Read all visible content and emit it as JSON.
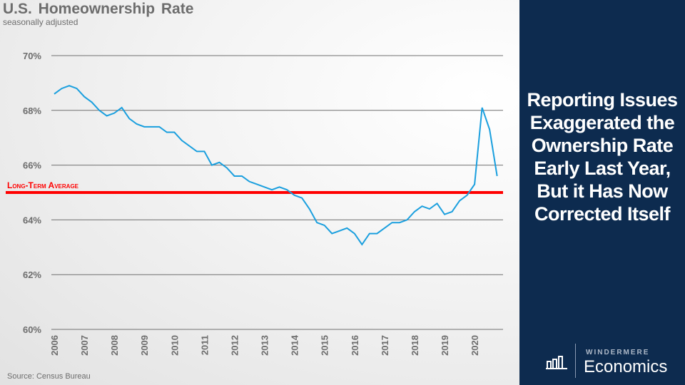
{
  "title": "U.S. Homeownership  Rate",
  "subtitle": "seasonally adjusted",
  "source": "Source: Census Bureau",
  "headline": "Reporting Issues Exaggerated the Ownership Rate Early Last Year, But it Has Now Corrected Itself",
  "logo": {
    "brand": "WINDERMERE",
    "product": "Economics"
  },
  "colors": {
    "line": "#1a9fde",
    "average": "#ff0000",
    "panel": "#0d2b4f",
    "grid": "#707070"
  },
  "chart_data": {
    "type": "line",
    "title": "U.S. Homeownership Rate",
    "ylabel": "",
    "xlabel": "",
    "ylim": [
      60,
      70
    ],
    "yticks": [
      60,
      62,
      64,
      66,
      68,
      70
    ],
    "ytick_labels": [
      "60%",
      "62%",
      "64%",
      "66%",
      "68%",
      "70%"
    ],
    "xtick_labels": [
      "2006",
      "2007",
      "2008",
      "2009",
      "2010",
      "2011",
      "2012",
      "2013",
      "2014",
      "2015",
      "2016",
      "2017",
      "2018",
      "2019",
      "2020"
    ],
    "x_start": 2006,
    "frequency": "quarterly",
    "series": [
      {
        "name": "Homeownership Rate",
        "values": [
          68.6,
          68.8,
          68.9,
          68.8,
          68.5,
          68.3,
          68.0,
          67.8,
          67.9,
          68.1,
          67.7,
          67.5,
          67.4,
          67.4,
          67.4,
          67.2,
          67.2,
          66.9,
          66.7,
          66.5,
          66.5,
          66.0,
          66.1,
          65.9,
          65.6,
          65.6,
          65.4,
          65.3,
          65.2,
          65.1,
          65.2,
          65.1,
          64.9,
          64.8,
          64.4,
          63.9,
          63.8,
          63.5,
          63.6,
          63.7,
          63.5,
          63.1,
          63.5,
          63.5,
          63.7,
          63.9,
          63.9,
          64.0,
          64.3,
          64.5,
          64.4,
          64.6,
          64.2,
          64.3,
          64.7,
          64.9,
          65.3,
          68.1,
          67.3,
          65.6
        ]
      }
    ],
    "reference_line": {
      "label": "Long-Term Average",
      "value": 65.0
    },
    "grid": true
  }
}
